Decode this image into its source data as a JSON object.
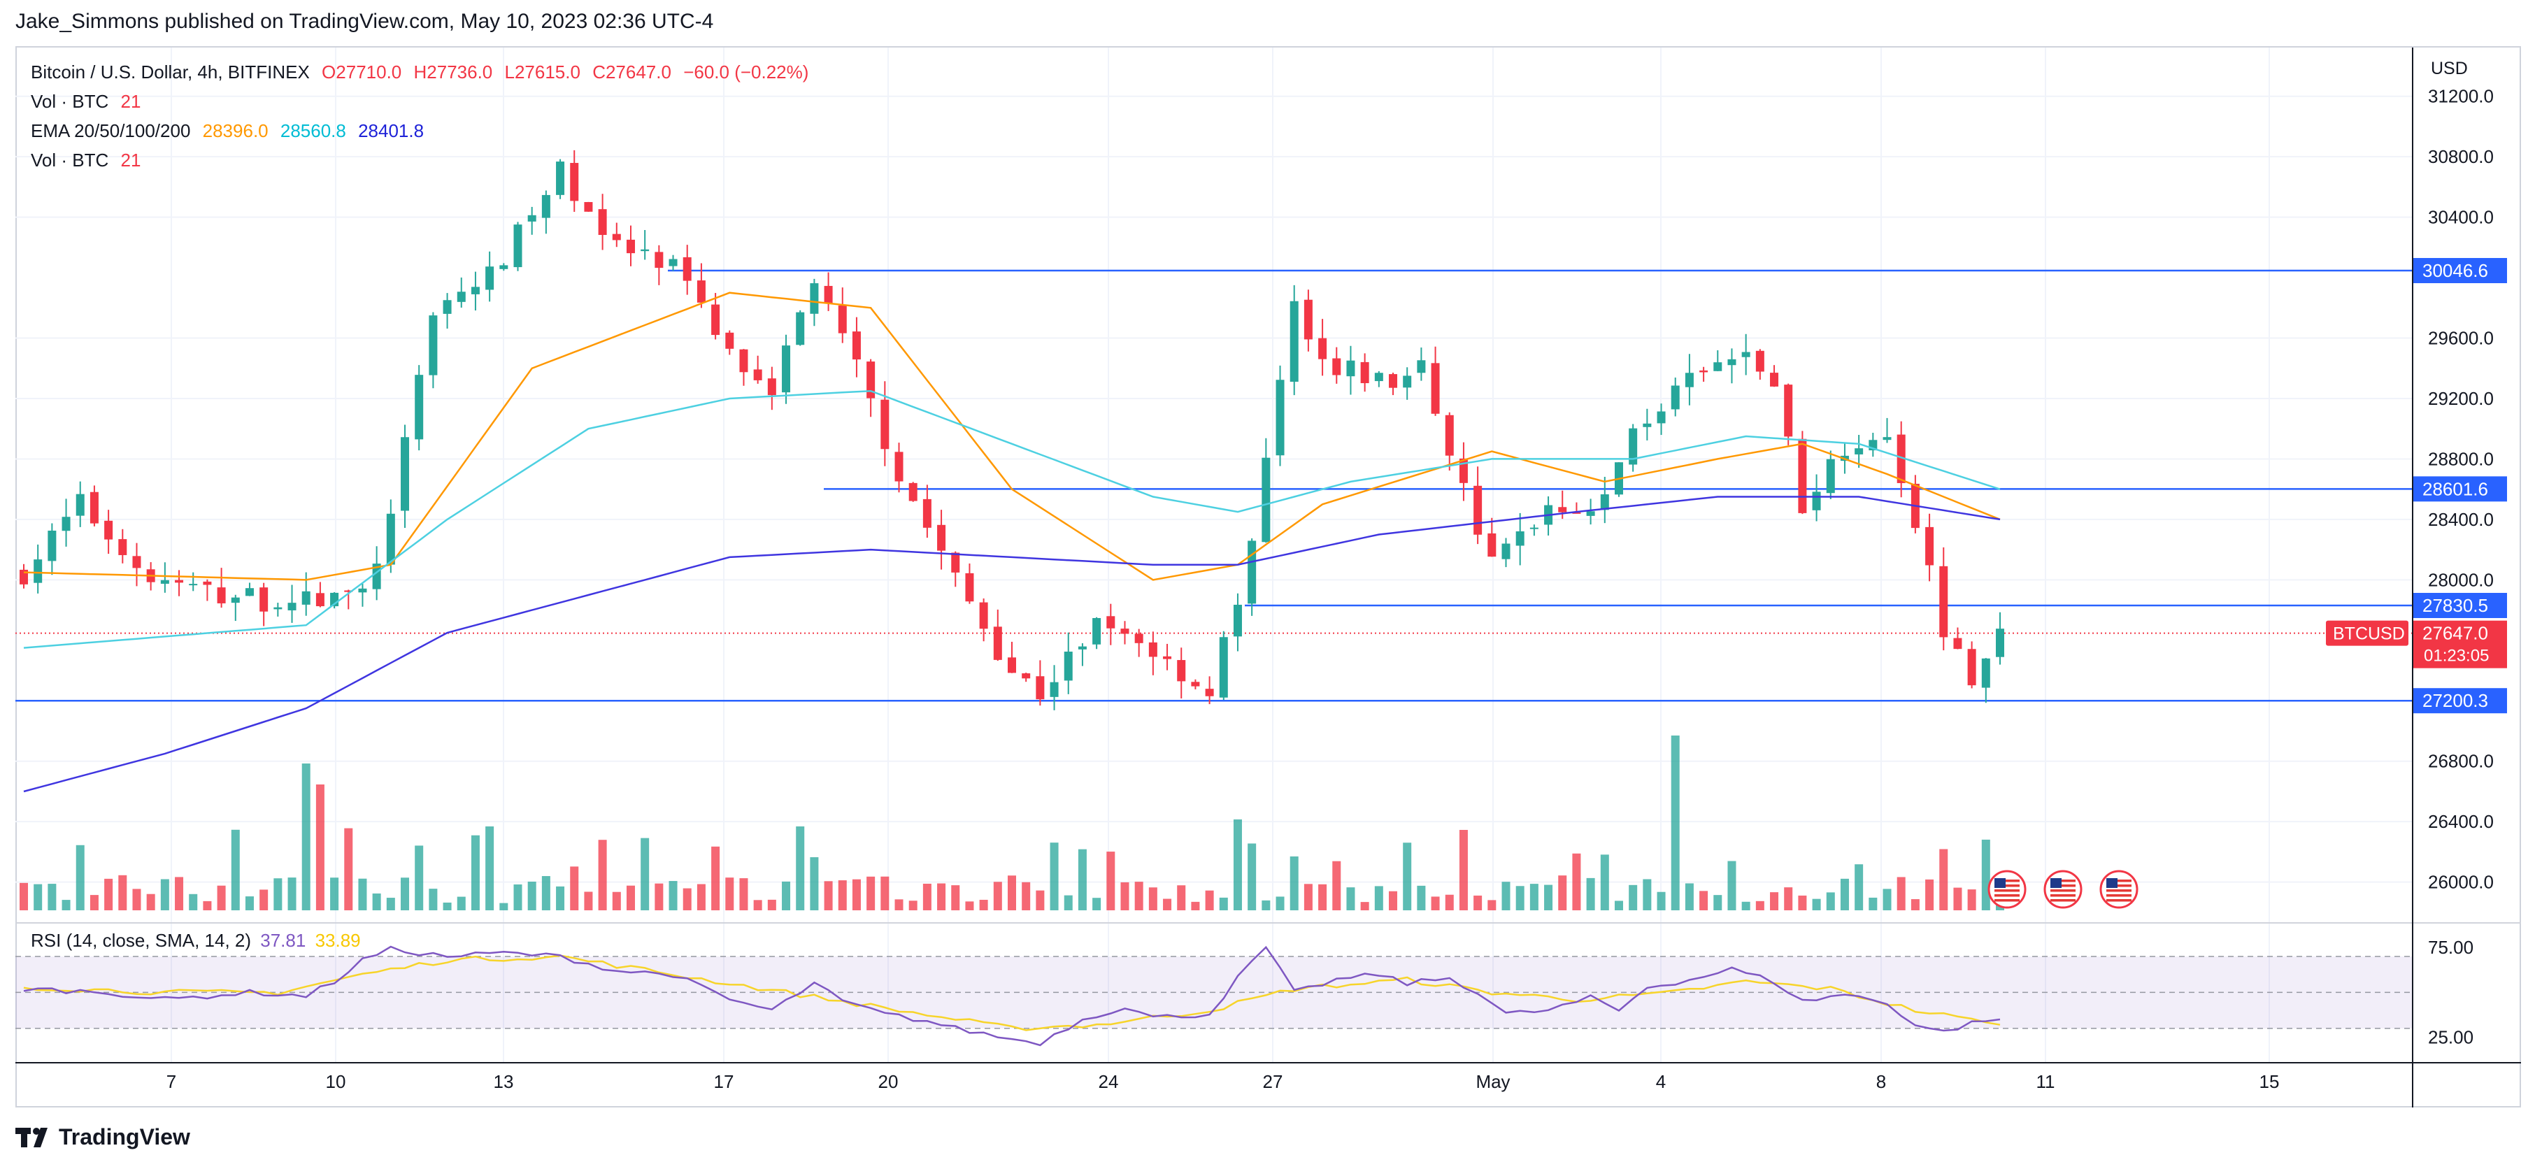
{
  "publisher_line": "Jake_Simmons published on TradingView.com, May 10, 2023 02:36 UTC-4",
  "legend": {
    "symbol": "Bitcoin / U.S. Dollar, 4h, BITFINEX",
    "open": "O27710.0",
    "high": "H27736.0",
    "low": "L27615.0",
    "close": "C27647.0",
    "change": "−60.0 (−0.22%)",
    "vol_label": "Vol · BTC",
    "vol_value": "21",
    "ema_label": "EMA 20/50/100/200",
    "ema20": "28396.0",
    "ema50": "28560.8",
    "ema100": "28401.8",
    "vol2_label": "Vol · BTC",
    "vol2_value": "21"
  },
  "rsi_legend": {
    "label": "RSI (14, close, SMA, 14, 2)",
    "rsi": "37.81",
    "sma": "33.89"
  },
  "currency": "USD",
  "symbol_tag": "BTCUSD",
  "last_price_tag": "27647.0",
  "countdown": "01:23:05",
  "level_tags": [
    "30046.6",
    "28601.6",
    "27830.5",
    "27200.3"
  ],
  "rsi_ticks": [
    "75.00",
    "25.00"
  ],
  "brand": "TradingView",
  "colors": {
    "up": "#26a69a",
    "down": "#f23645",
    "ema20": "#ff9800",
    "ema50": "#4dd0e1",
    "ema100": "#3f35e0",
    "level": "#2962ff",
    "rsi": "#7e57c2",
    "rsi_sma": "#f7d42a"
  },
  "chart_data": {
    "type": "candlestick",
    "timeframe": "4h",
    "x_ticks": [
      "7",
      "10",
      "13",
      "17",
      "20",
      "24",
      "27",
      "May",
      "4",
      "8",
      "11",
      "15"
    ],
    "y_ticks": [
      31200,
      30800,
      30400,
      29600,
      29200,
      28800,
      28400,
      28000,
      26800,
      26400,
      26000
    ],
    "ylim": [
      25800,
      31600
    ],
    "horizontal_levels": [
      30046.6,
      28601.6,
      27830.5,
      27200.3
    ],
    "last_price": 27647.0,
    "close_path": [
      [
        0,
        28050
      ],
      [
        4,
        28500
      ],
      [
        9,
        28000
      ],
      [
        14,
        27900
      ],
      [
        19,
        27850
      ],
      [
        24,
        27900
      ],
      [
        26,
        28400
      ],
      [
        29,
        29800
      ],
      [
        33,
        30000
      ],
      [
        38,
        30700
      ],
      [
        42,
        30200
      ],
      [
        46,
        30050
      ],
      [
        50,
        29500
      ],
      [
        53,
        29300
      ],
      [
        56,
        29950
      ],
      [
        59,
        29400
      ],
      [
        62,
        28700
      ],
      [
        66,
        28000
      ],
      [
        70,
        27400
      ],
      [
        72,
        27250
      ],
      [
        76,
        27700
      ],
      [
        79,
        27600
      ],
      [
        84,
        27250
      ],
      [
        87,
        28200
      ],
      [
        90,
        29800
      ],
      [
        93,
        29400
      ],
      [
        97,
        29300
      ],
      [
        99,
        29400
      ],
      [
        102,
        28600
      ],
      [
        104,
        28100
      ],
      [
        108,
        28500
      ],
      [
        112,
        28500
      ],
      [
        114,
        29000
      ],
      [
        118,
        29300
      ],
      [
        122,
        29500
      ],
      [
        124,
        29300
      ],
      [
        126,
        28500
      ],
      [
        129,
        28900
      ],
      [
        132,
        29000
      ],
      [
        134,
        28400
      ],
      [
        136,
        27700
      ],
      [
        138,
        27300
      ],
      [
        140,
        27650
      ]
    ],
    "ema20": [
      [
        0,
        28050
      ],
      [
        20,
        28000
      ],
      [
        26,
        28100
      ],
      [
        36,
        29400
      ],
      [
        50,
        29900
      ],
      [
        60,
        29800
      ],
      [
        70,
        28600
      ],
      [
        80,
        28000
      ],
      [
        86,
        28100
      ],
      [
        92,
        28500
      ],
      [
        104,
        28850
      ],
      [
        112,
        28650
      ],
      [
        120,
        28800
      ],
      [
        126,
        28900
      ],
      [
        132,
        28700
      ],
      [
        140,
        28400
      ]
    ],
    "ema50": [
      [
        0,
        27550
      ],
      [
        20,
        27700
      ],
      [
        30,
        28400
      ],
      [
        40,
        29000
      ],
      [
        50,
        29200
      ],
      [
        60,
        29250
      ],
      [
        70,
        28900
      ],
      [
        80,
        28550
      ],
      [
        86,
        28450
      ],
      [
        94,
        28650
      ],
      [
        104,
        28800
      ],
      [
        114,
        28800
      ],
      [
        122,
        28950
      ],
      [
        130,
        28900
      ],
      [
        140,
        28600
      ]
    ],
    "ema100": [
      [
        0,
        26600
      ],
      [
        10,
        26850
      ],
      [
        20,
        27150
      ],
      [
        30,
        27650
      ],
      [
        40,
        27900
      ],
      [
        50,
        28150
      ],
      [
        60,
        28200
      ],
      [
        70,
        28150
      ],
      [
        80,
        28100
      ],
      [
        86,
        28100
      ],
      [
        96,
        28300
      ],
      [
        110,
        28450
      ],
      [
        120,
        28550
      ],
      [
        130,
        28550
      ],
      [
        140,
        28400
      ]
    ],
    "rsi": [
      [
        0,
        52
      ],
      [
        6,
        50
      ],
      [
        10,
        46
      ],
      [
        16,
        50
      ],
      [
        20,
        48
      ],
      [
        22,
        56
      ],
      [
        24,
        68
      ],
      [
        26,
        74
      ],
      [
        30,
        70
      ],
      [
        34,
        72
      ],
      [
        38,
        70
      ],
      [
        42,
        62
      ],
      [
        46,
        60
      ],
      [
        50,
        46
      ],
      [
        53,
        40
      ],
      [
        56,
        55
      ],
      [
        58,
        45
      ],
      [
        61,
        38
      ],
      [
        64,
        34
      ],
      [
        66,
        30
      ],
      [
        70,
        24
      ],
      [
        72,
        22
      ],
      [
        75,
        35
      ],
      [
        78,
        42
      ],
      [
        80,
        36
      ],
      [
        84,
        38
      ],
      [
        86,
        58
      ],
      [
        88,
        75
      ],
      [
        90,
        50
      ],
      [
        93,
        57
      ],
      [
        96,
        60
      ],
      [
        98,
        55
      ],
      [
        101,
        58
      ],
      [
        103,
        50
      ],
      [
        105,
        38
      ],
      [
        108,
        40
      ],
      [
        111,
        47
      ],
      [
        113,
        40
      ],
      [
        115,
        53
      ],
      [
        118,
        57
      ],
      [
        121,
        63
      ],
      [
        124,
        56
      ],
      [
        126,
        45
      ],
      [
        129,
        49
      ],
      [
        132,
        44
      ],
      [
        134,
        32
      ],
      [
        136,
        28
      ],
      [
        138,
        33
      ],
      [
        140,
        35
      ]
    ],
    "rsi_sma": [
      [
        0,
        53
      ],
      [
        10,
        50
      ],
      [
        18,
        50
      ],
      [
        24,
        60
      ],
      [
        30,
        68
      ],
      [
        38,
        70
      ],
      [
        46,
        60
      ],
      [
        54,
        50
      ],
      [
        62,
        40
      ],
      [
        70,
        30
      ],
      [
        76,
        32
      ],
      [
        84,
        40
      ],
      [
        90,
        52
      ],
      [
        98,
        57
      ],
      [
        104,
        50
      ],
      [
        110,
        46
      ],
      [
        116,
        49
      ],
      [
        122,
        56
      ],
      [
        128,
        52
      ],
      [
        134,
        40
      ],
      [
        140,
        32
      ]
    ],
    "rsi_ylim": [
      14,
      84
    ],
    "rsi_levels": [
      70,
      50,
      30
    ],
    "bar_count": 141
  }
}
